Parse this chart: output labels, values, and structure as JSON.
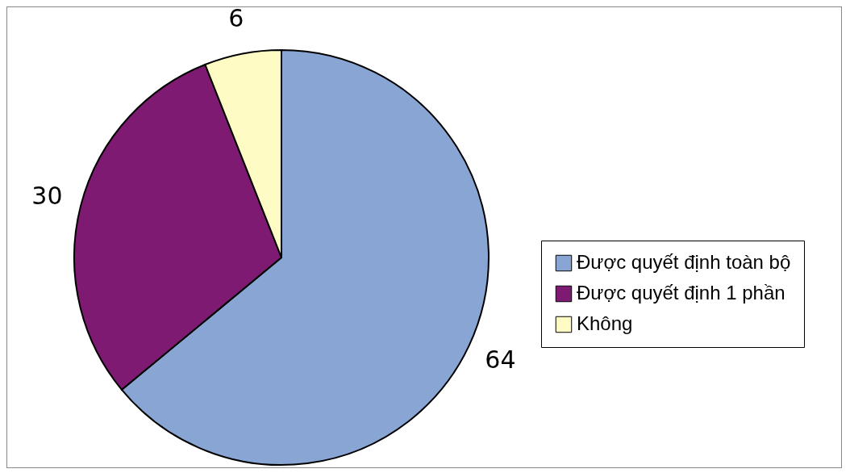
{
  "chart_data": {
    "type": "pie",
    "categories": [
      "Được quyết định toàn bộ",
      "Được quyết định 1 phần",
      "Không"
    ],
    "values": [
      64,
      30,
      6
    ],
    "colors": [
      "#89a5d4",
      "#7f1a72",
      "#fffbc4"
    ],
    "data_labels": true,
    "legend": "right"
  }
}
